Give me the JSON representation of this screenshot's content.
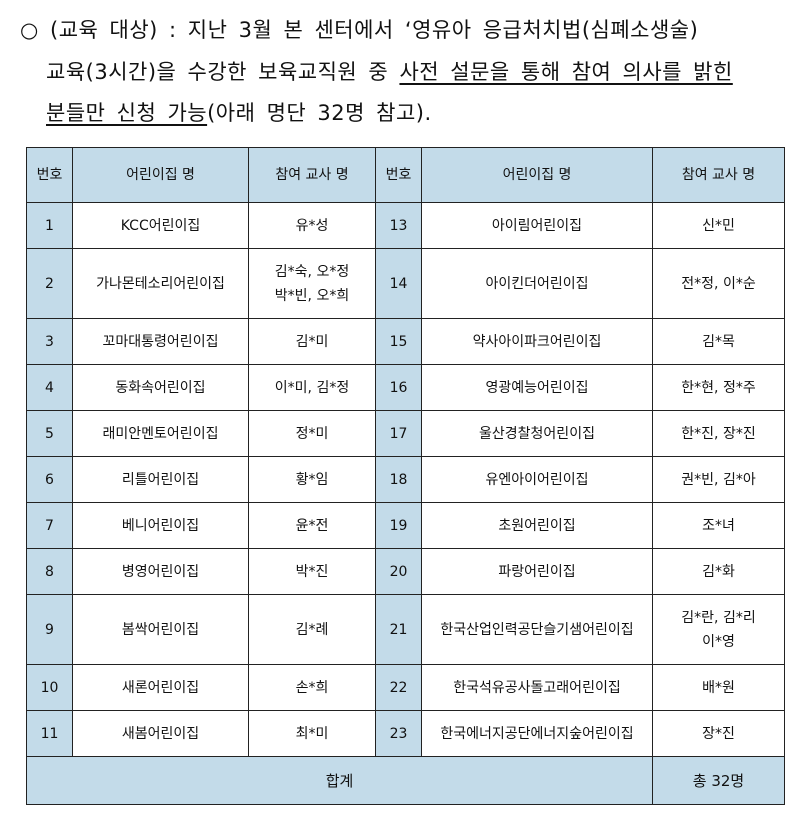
{
  "intro": {
    "bullet": "○",
    "line1": "(교육 대상) : 지난 3월 본 센터에서 ‘영유아 응급처치법(심폐소생술)",
    "line2_a": "교육(3시간)을 수강한 보육교직원 중 ",
    "line2_u": "사전 설문을 통해 참여 의사를 밝힌",
    "line3_u": "분들만 신청 가능",
    "line3_b": "(아래 명단 32명 참고)."
  },
  "table": {
    "headers": {
      "num": "번호",
      "center": "어린이집 명",
      "teachers": "참여 교사 명"
    },
    "left": [
      {
        "no": "1",
        "center": "KCC어린이집",
        "teachers": [
          "유*성"
        ]
      },
      {
        "no": "2",
        "center": "가나몬테소리어린이집",
        "teachers": [
          "김*숙, 오*정",
          "박*빈, 오*희"
        ]
      },
      {
        "no": "3",
        "center": "꼬마대통령어린이집",
        "teachers": [
          "김*미"
        ]
      },
      {
        "no": "4",
        "center": "동화속어린이집",
        "teachers": [
          "이*미, 김*정"
        ]
      },
      {
        "no": "5",
        "center": "래미안멘토어린이집",
        "teachers": [
          "정*미"
        ]
      },
      {
        "no": "6",
        "center": "리틀어린이집",
        "teachers": [
          "황*임"
        ]
      },
      {
        "no": "7",
        "center": "베니어린이집",
        "teachers": [
          "윤*전"
        ]
      },
      {
        "no": "8",
        "center": "병영어린이집",
        "teachers": [
          "박*진"
        ]
      },
      {
        "no": "9",
        "center": "봄싹어린이집",
        "teachers": [
          "김*례"
        ]
      },
      {
        "no": "10",
        "center": "새론어린이집",
        "teachers": [
          "손*희"
        ]
      },
      {
        "no": "11",
        "center": "새봄어린이집",
        "teachers": [
          "최*미"
        ]
      }
    ],
    "right": [
      {
        "no": "13",
        "center": "아이림어린이집",
        "teachers": [
          "신*민"
        ]
      },
      {
        "no": "14",
        "center": "아이킨더어린이집",
        "teachers": [
          "전*정, 이*순"
        ]
      },
      {
        "no": "15",
        "center": "약사아이파크어린이집",
        "teachers": [
          "김*목"
        ]
      },
      {
        "no": "16",
        "center": "영광예능어린이집",
        "teachers": [
          "한*현, 정*주"
        ]
      },
      {
        "no": "17",
        "center": "울산경찰청어린이집",
        "teachers": [
          "한*진, 장*진"
        ]
      },
      {
        "no": "18",
        "center": "유엔아이어린이집",
        "teachers": [
          "권*빈, 김*아"
        ]
      },
      {
        "no": "19",
        "center": "초원어린이집",
        "teachers": [
          "조*녀"
        ]
      },
      {
        "no": "20",
        "center": "파랑어린이집",
        "teachers": [
          "김*화"
        ]
      },
      {
        "no": "21",
        "center": "한국산업인력공단슬기샘어린이집",
        "teachers": [
          "김*란, 김*리",
          "이*영"
        ]
      },
      {
        "no": "22",
        "center": "한국석유공사돌고래어린이집",
        "teachers": [
          "배*원"
        ]
      },
      {
        "no": "23",
        "center": "한국에너지공단에너지숲어린이집",
        "teachers": [
          "장*진"
        ]
      }
    ],
    "total_label": "합계",
    "total_value": "총 32명",
    "header_color": "#c3dbe9"
  }
}
